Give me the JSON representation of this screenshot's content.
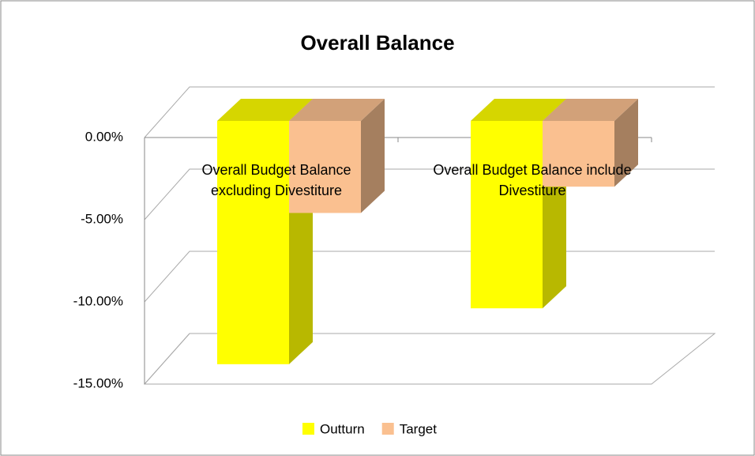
{
  "chart_data": {
    "type": "bar3d",
    "title": "Overall Balance",
    "categories": [
      "Overall Budget Balance excluding Divestiture",
      "Overall Budget Balance include Divestiture"
    ],
    "series": [
      {
        "name": "Outturn",
        "color": "#ffff00",
        "values": [
          -14.8,
          -11.4
        ]
      },
      {
        "name": "Target",
        "color": "#fac090",
        "values": [
          -5.6,
          -4.0
        ]
      }
    ],
    "ylim": [
      -15,
      0
    ],
    "yticks": [
      {
        "value": 0,
        "label": "0.00%"
      },
      {
        "value": -5,
        "label": "-5.00%"
      },
      {
        "value": -10,
        "label": "-10.00%"
      },
      {
        "value": -15,
        "label": "-15.00%"
      }
    ],
    "grid": true,
    "legend": "bottom"
  }
}
